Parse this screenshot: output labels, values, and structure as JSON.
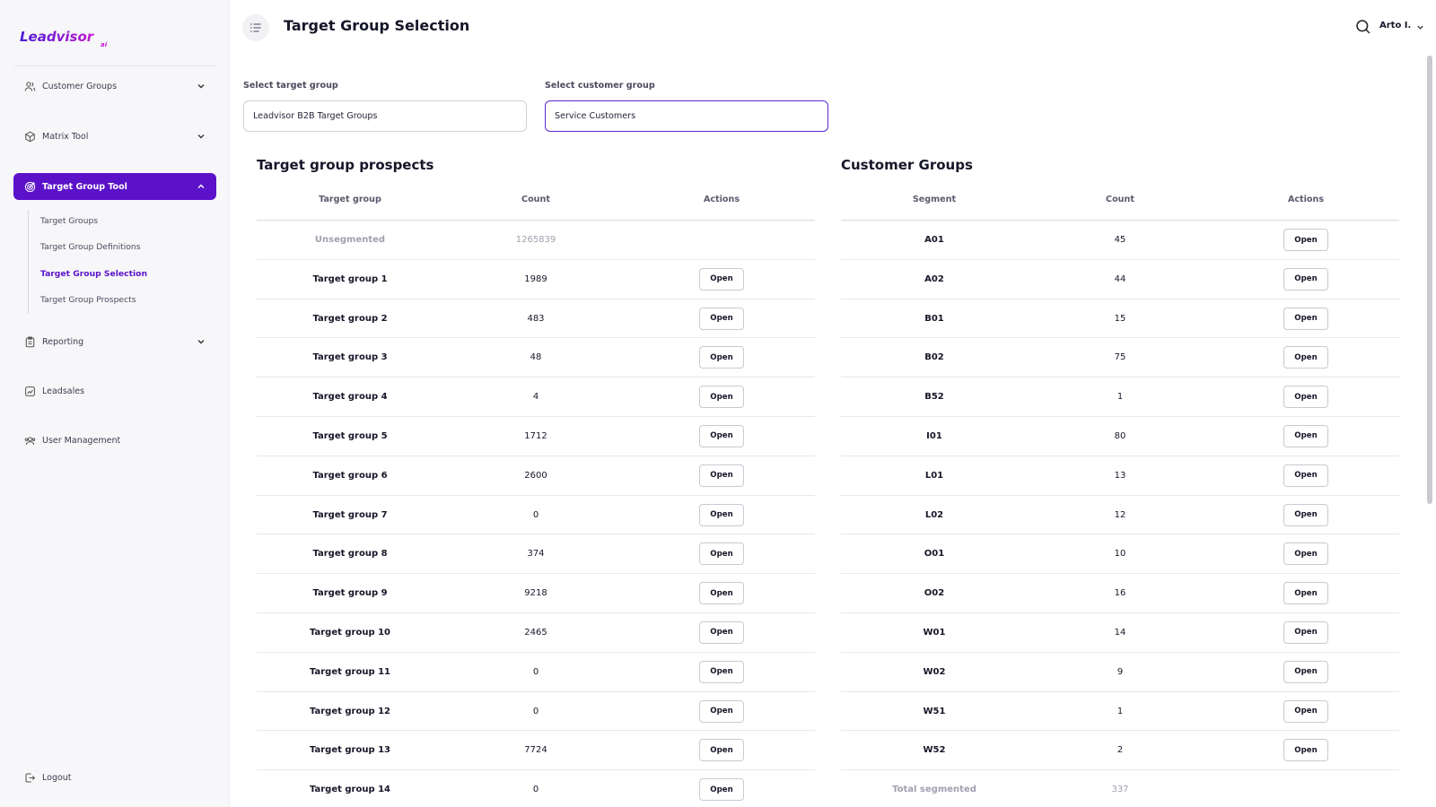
{
  "brand": {
    "logo_text": "Leadvisor",
    "logo_suffix": "ai",
    "accent": "#5b12c9"
  },
  "sidebar": {
    "items": [
      {
        "label": "Customer Groups",
        "icon": "users-icon"
      },
      {
        "label": "Matrix Tool",
        "icon": "cube-icon"
      },
      {
        "label": "Target Group Tool",
        "icon": "target-icon"
      },
      {
        "label": "Reporting",
        "icon": "clipboard-icon"
      },
      {
        "label": "Leadsales",
        "icon": "chart-icon"
      },
      {
        "label": "User Management",
        "icon": "user-group-icon"
      }
    ],
    "sub_items": [
      {
        "label": "Target Groups"
      },
      {
        "label": "Target Group Definitions"
      },
      {
        "label": "Target Group Selection"
      },
      {
        "label": "Target Group Prospects"
      }
    ],
    "logout_label": "Logout"
  },
  "header": {
    "title": "Target Group Selection",
    "user_name": "Arto I."
  },
  "filters": {
    "target_group_label": "Select target group",
    "target_group_value": "Leadvisor B2B Target Groups",
    "customer_group_label": "Select customer group",
    "customer_group_value": "Service Customers"
  },
  "prospects": {
    "title": "Target group prospects",
    "columns": [
      "Target group",
      "Count",
      "Actions"
    ],
    "action_label": "Open",
    "rows": [
      {
        "name": "Unsegmented",
        "count": "1265839"
      },
      {
        "name": "Target group 1",
        "count": "1989"
      },
      {
        "name": "Target group 2",
        "count": "483"
      },
      {
        "name": "Target group 3",
        "count": "48"
      },
      {
        "name": "Target group 4",
        "count": "4"
      },
      {
        "name": "Target group 5",
        "count": "1712"
      },
      {
        "name": "Target group 6",
        "count": "2600"
      },
      {
        "name": "Target group 7",
        "count": "0"
      },
      {
        "name": "Target group 8",
        "count": "374"
      },
      {
        "name": "Target group 9",
        "count": "9218"
      },
      {
        "name": "Target group 10",
        "count": "2465"
      },
      {
        "name": "Target group 11",
        "count": "0"
      },
      {
        "name": "Target group 12",
        "count": "0"
      },
      {
        "name": "Target group 13",
        "count": "7724"
      },
      {
        "name": "Target group 14",
        "count": "0"
      }
    ]
  },
  "customer_groups": {
    "title": "Customer Groups",
    "columns": [
      "Segment",
      "Count",
      "Actions"
    ],
    "action_label": "Open",
    "rows": [
      {
        "name": "A01",
        "count": "45"
      },
      {
        "name": "A02",
        "count": "44"
      },
      {
        "name": "B01",
        "count": "15"
      },
      {
        "name": "B02",
        "count": "75"
      },
      {
        "name": "B52",
        "count": "1"
      },
      {
        "name": "I01",
        "count": "80"
      },
      {
        "name": "L01",
        "count": "13"
      },
      {
        "name": "L02",
        "count": "12"
      },
      {
        "name": "O01",
        "count": "10"
      },
      {
        "name": "O02",
        "count": "16"
      },
      {
        "name": "W01",
        "count": "14"
      },
      {
        "name": "W02",
        "count": "9"
      },
      {
        "name": "W51",
        "count": "1"
      },
      {
        "name": "W52",
        "count": "2"
      }
    ],
    "total_label": "Total segmented",
    "total_count": "337"
  }
}
